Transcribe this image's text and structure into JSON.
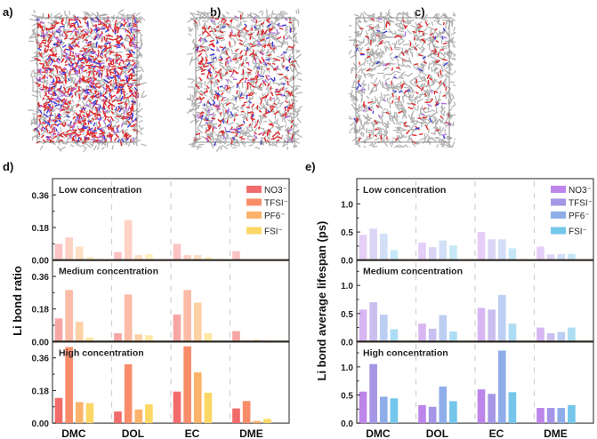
{
  "panels": {
    "a": {
      "label": "a)"
    },
    "b": {
      "label": "b)"
    },
    "c": {
      "label": "c)"
    },
    "d": {
      "label": "d)"
    },
    "e": {
      "label": "e)"
    }
  },
  "colors": {
    "d_series": [
      "#f26b6b",
      "#f98d6a",
      "#fbb26a",
      "#fbd865"
    ],
    "e_series": [
      "#bd85ea",
      "#a596e6",
      "#8faee9",
      "#74c6ea"
    ],
    "sim_gray": "#a9a9a9",
    "sim_red": "#e0282b",
    "sim_blue": "#3a3ad8",
    "sim_purple": "#b06ee0"
  },
  "chart_data": [
    {
      "id": "d",
      "type": "bar",
      "title": "",
      "xlabel": "",
      "ylabel": "Li bond ratio",
      "categories": [
        "DMC",
        "DOL",
        "EC",
        "DME"
      ],
      "legend": {
        "placement": "top-right",
        "entries": [
          "NO3⁻",
          "TFSI⁻",
          "PF6⁻",
          "FSI⁻"
        ]
      },
      "series_names": [
        "NO3⁻",
        "TFSI⁻",
        "PF6⁻",
        "FSI⁻"
      ],
      "ylim": [
        0,
        0.45
      ],
      "yticks": [
        "0.00",
        "0.18",
        "0.36"
      ],
      "ytick_values": [
        0,
        0.18,
        0.36
      ],
      "subplots": [
        {
          "name": "Low concentration",
          "opacity": 0.4,
          "values": [
            [
              0.09,
              0.125,
              0.074,
              0.017
            ],
            [
              0.045,
              0.22,
              0.028,
              0.033
            ],
            [
              0.09,
              0.028,
              0.028,
              0.017
            ],
            [
              0.05,
              0.0,
              0.0,
              0.0
            ]
          ]
        },
        {
          "name": "Medium concentration",
          "opacity": 0.6,
          "values": [
            [
              0.128,
              0.285,
              0.11,
              0.023
            ],
            [
              0.046,
              0.26,
              0.04,
              0.035
            ],
            [
              0.15,
              0.285,
              0.215,
              0.046
            ],
            [
              0.058,
              0.006,
              0.01,
              0.006
            ]
          ]
        },
        {
          "name": "High concentration",
          "opacity": 1.0,
          "values": [
            [
              0.139,
              0.42,
              0.116,
              0.11
            ],
            [
              0.064,
              0.325,
              0.075,
              0.104
            ],
            [
              0.174,
              0.424,
              0.28,
              0.168
            ],
            [
              0.081,
              0.122,
              0.012,
              0.023
            ]
          ]
        }
      ]
    },
    {
      "id": "e",
      "type": "bar",
      "title": "",
      "xlabel": "",
      "ylabel": "Li bond average lifespan (ps)",
      "categories": [
        "DMC",
        "DOL",
        "EC",
        "DME"
      ],
      "legend": {
        "placement": "top-right",
        "entries": [
          "NO3⁻",
          "TFSI⁻",
          "PF6⁻",
          "FSI⁻"
        ]
      },
      "series_names": [
        "NO3⁻",
        "TFSI⁻",
        "PF6⁻",
        "FSI⁻"
      ],
      "ylim": [
        0,
        1.45
      ],
      "yticks": [
        "0.0",
        "0.5",
        "1.0"
      ],
      "ytick_values": [
        0,
        0.5,
        1.0
      ],
      "subplots": [
        {
          "name": "Low concentration",
          "opacity": 0.4,
          "values": [
            [
              0.45,
              0.56,
              0.47,
              0.18
            ],
            [
              0.31,
              0.23,
              0.35,
              0.26
            ],
            [
              0.5,
              0.37,
              0.37,
              0.21
            ],
            [
              0.24,
              0.1,
              0.11,
              0.11
            ]
          ]
        },
        {
          "name": "Medium concentration",
          "opacity": 0.6,
          "values": [
            [
              0.57,
              0.7,
              0.48,
              0.22
            ],
            [
              0.32,
              0.23,
              0.47,
              0.18
            ],
            [
              0.6,
              0.57,
              0.83,
              0.32
            ],
            [
              0.25,
              0.15,
              0.17,
              0.25
            ]
          ]
        },
        {
          "name": "High concentration",
          "opacity": 1.0,
          "values": [
            [
              0.56,
              1.05,
              0.47,
              0.44
            ],
            [
              0.32,
              0.29,
              0.65,
              0.39
            ],
            [
              0.6,
              0.52,
              1.29,
              0.55
            ],
            [
              0.27,
              0.27,
              0.27,
              0.32
            ]
          ]
        }
      ]
    }
  ]
}
